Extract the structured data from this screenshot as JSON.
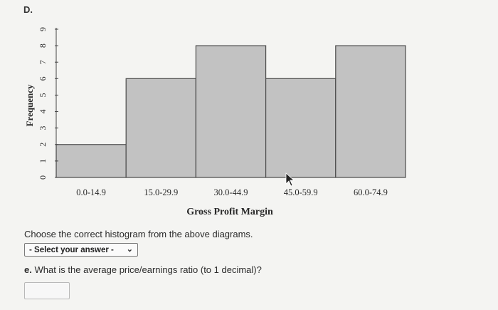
{
  "option": {
    "label": "D."
  },
  "chart_data": {
    "type": "bar",
    "categories": [
      "0.0-14.9",
      "15.0-29.9",
      "30.0-44.9",
      "45.0-59.9",
      "60.0-74.9"
    ],
    "values": [
      2,
      6,
      8,
      6,
      8
    ],
    "xlabel": "Gross Profit Margin",
    "ylabel": "Frequency",
    "ylim": [
      0,
      9
    ],
    "yticks": [
      0,
      1,
      2,
      3,
      4,
      5,
      6,
      7,
      8,
      9
    ],
    "colors": {
      "bar_fill": "#c2c2c2",
      "bar_stroke": "#4a4a4a"
    },
    "grid": false
  },
  "question": {
    "text": "Choose the correct histogram from the above diagrams.",
    "select_value": "- Select your answer -"
  },
  "part_e": {
    "letter": "e.",
    "text": "What is the average price/earnings ratio (to 1 decimal)?"
  }
}
